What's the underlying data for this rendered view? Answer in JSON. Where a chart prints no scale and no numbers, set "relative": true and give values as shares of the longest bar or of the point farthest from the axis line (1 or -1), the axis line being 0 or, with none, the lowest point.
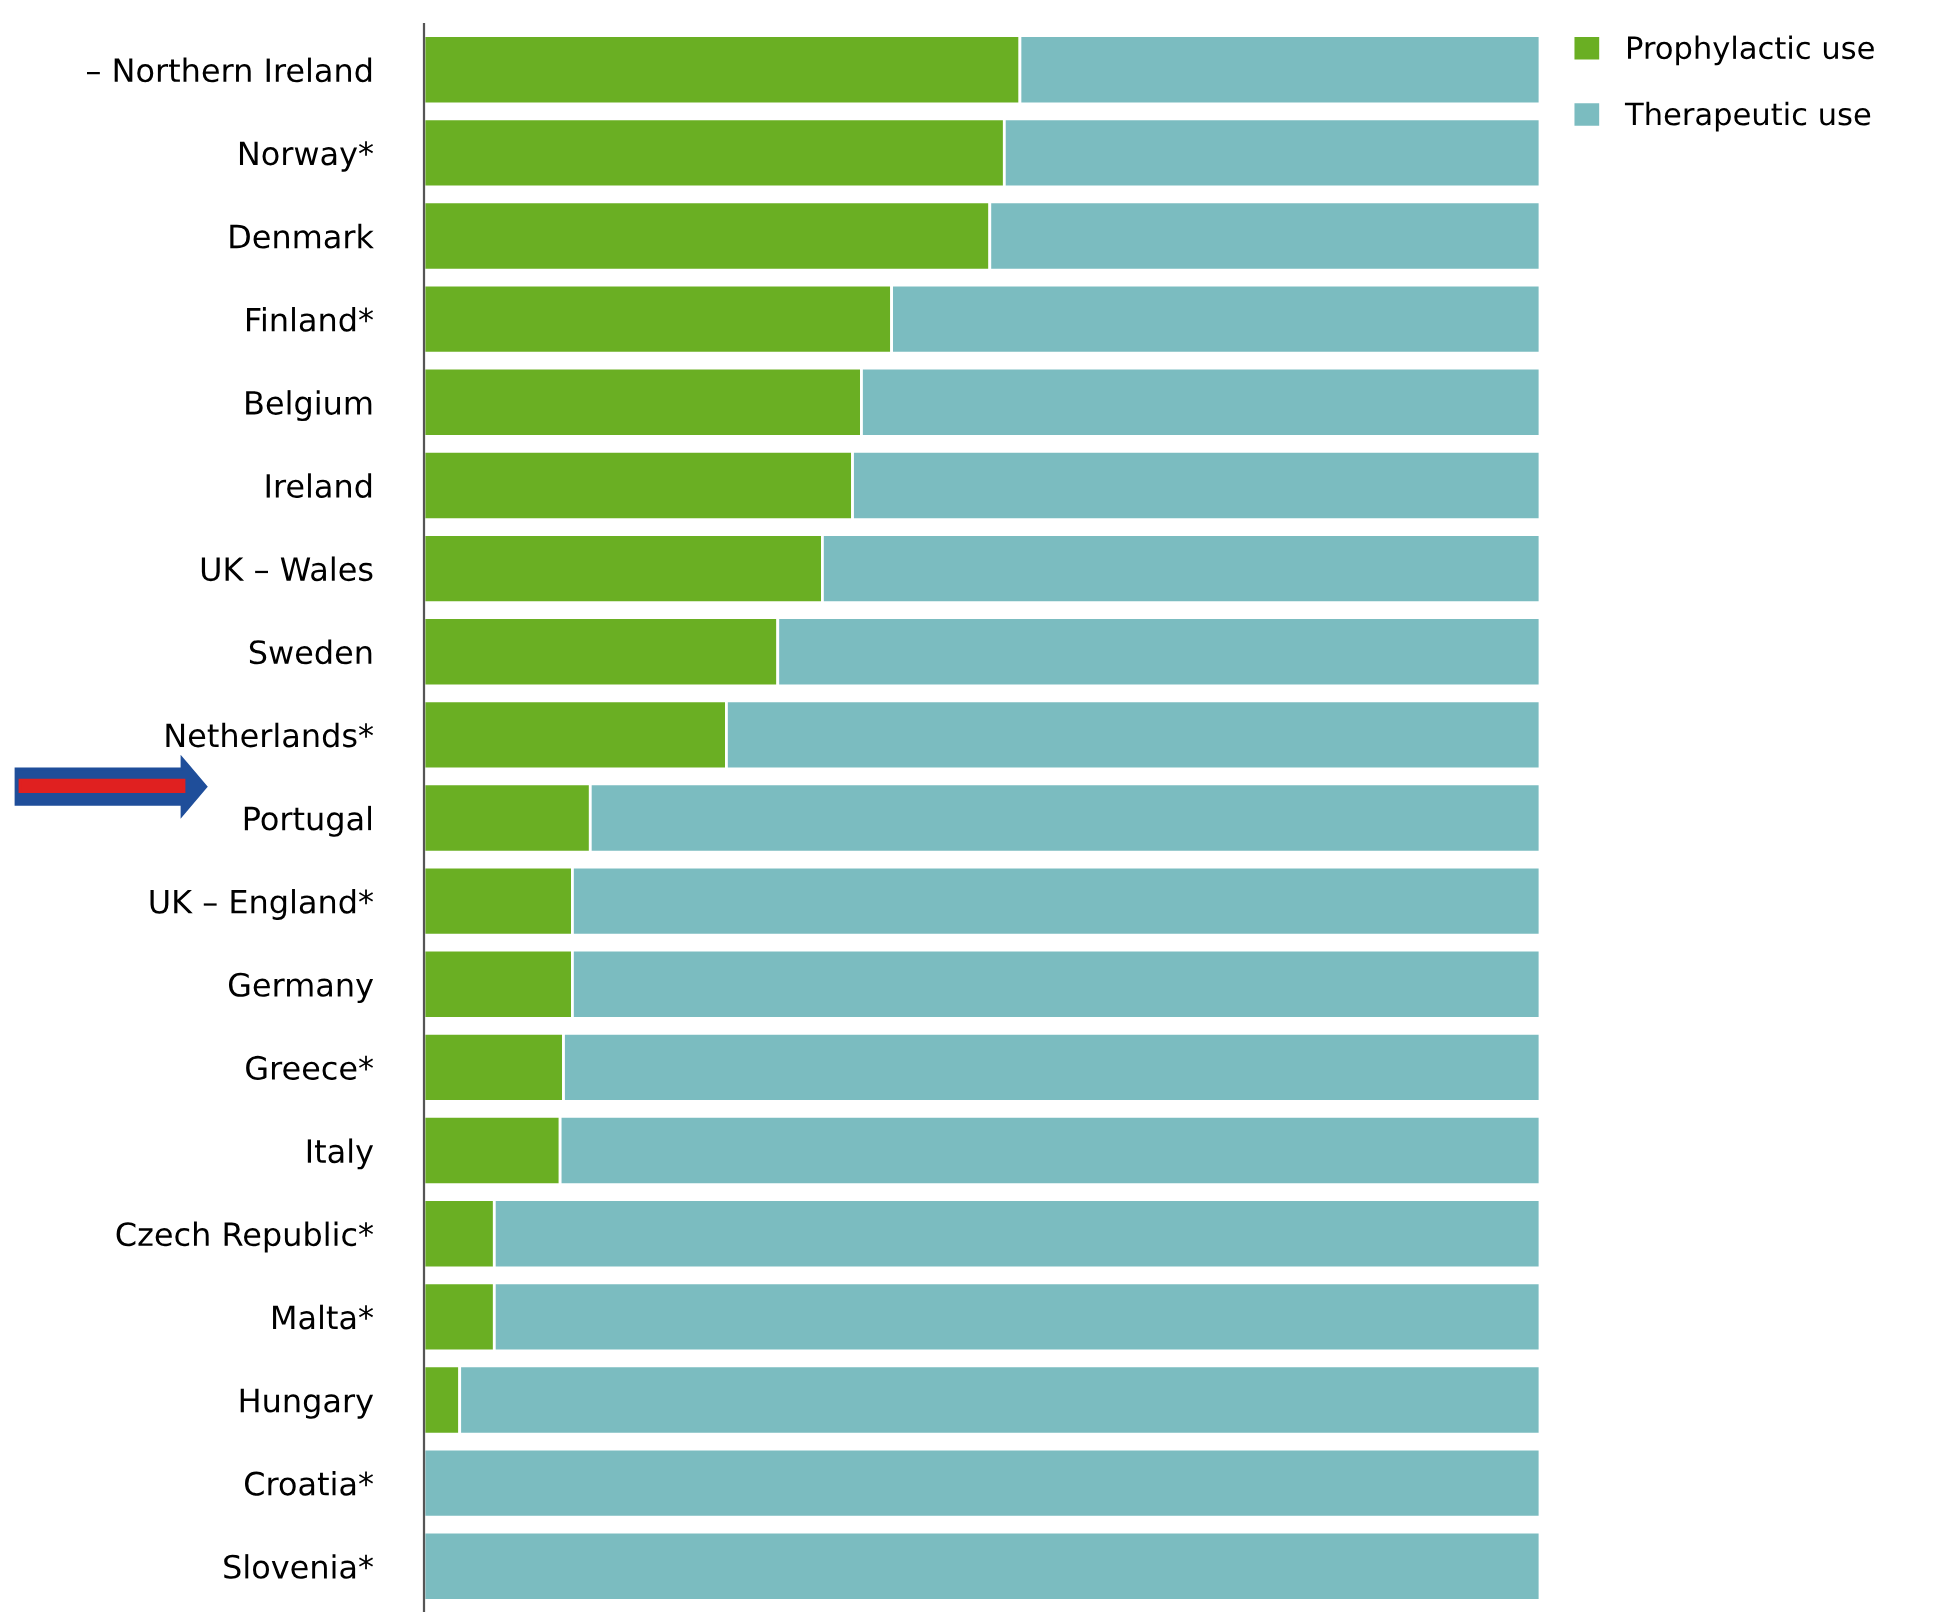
{
  "chart_data": {
    "type": "bar",
    "orientation": "horizontal",
    "stacked": true,
    "relative": true,
    "tick_labels": "y",
    "legend": "top right",
    "grid": false,
    "categories": [
      "– Northern Ireland",
      "Norway*",
      "Denmark",
      "Finland*",
      "Belgium",
      "Ireland",
      "UK – Wales",
      "Sweden",
      "Netherlands*",
      "Portugal",
      "UK – England*",
      "Germany",
      "Greece*",
      "Italy",
      "Czech Republic*",
      "Malta*",
      "Hungary",
      "Croatia*",
      "Slovenia*"
    ],
    "series": [
      {
        "name": "Prophylactic use",
        "color": "#6aaf23",
        "values": [
          0.534,
          0.52,
          0.507,
          0.419,
          0.392,
          0.384,
          0.357,
          0.317,
          0.271,
          0.149,
          0.133,
          0.133,
          0.125,
          0.122,
          0.063,
          0.063,
          0.032,
          0,
          0
        ]
      },
      {
        "name": "Therapeutic use",
        "color": "#7bbcc0",
        "values": [
          0.466,
          0.48,
          0.493,
          0.581,
          0.608,
          0.616,
          0.643,
          0.683,
          0.729,
          0.851,
          0.867,
          0.867,
          0.875,
          0.878,
          0.937,
          0.937,
          0.968,
          1,
          1
        ]
      }
    ]
  }
}
